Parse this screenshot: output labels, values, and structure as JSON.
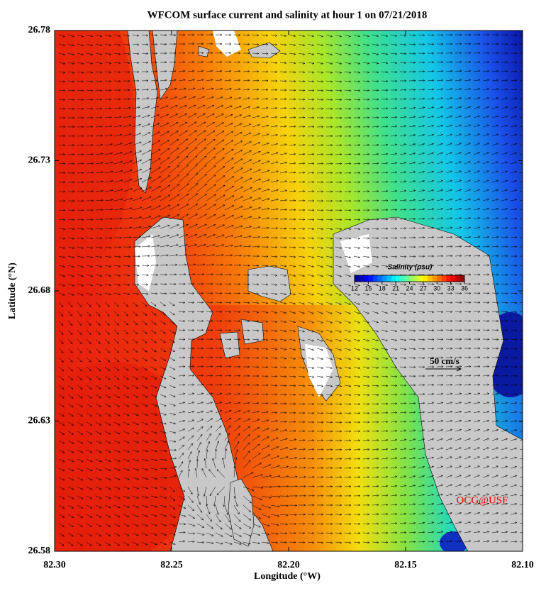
{
  "chart_data": {
    "type": "map",
    "title": "WFCOM surface current and salinity at hour 1 on 07/21/2018",
    "xlabel": "Longitude (°W)",
    "ylabel": "Latitude (°N)",
    "xlim": [
      82.3,
      82.1
    ],
    "xticks": [
      {
        "value": 82.3,
        "label": "82.30"
      },
      82.25,
      {
        "value": 82.2,
        "label": "82.20"
      },
      82.15,
      {
        "value": 82.1,
        "label": "82.10"
      }
    ],
    "ylim": [
      26.58,
      26.78
    ],
    "yticks": [
      26.58,
      26.63,
      26.68,
      26.73,
      26.78
    ],
    "colorbar": {
      "label": "Salinity (psu)",
      "lim": [
        12,
        36
      ],
      "ticks": [
        12,
        15,
        18,
        21,
        24,
        27,
        30,
        33,
        36
      ]
    },
    "scale_label": "50 cm/s",
    "credit": "OCG@USF"
  }
}
